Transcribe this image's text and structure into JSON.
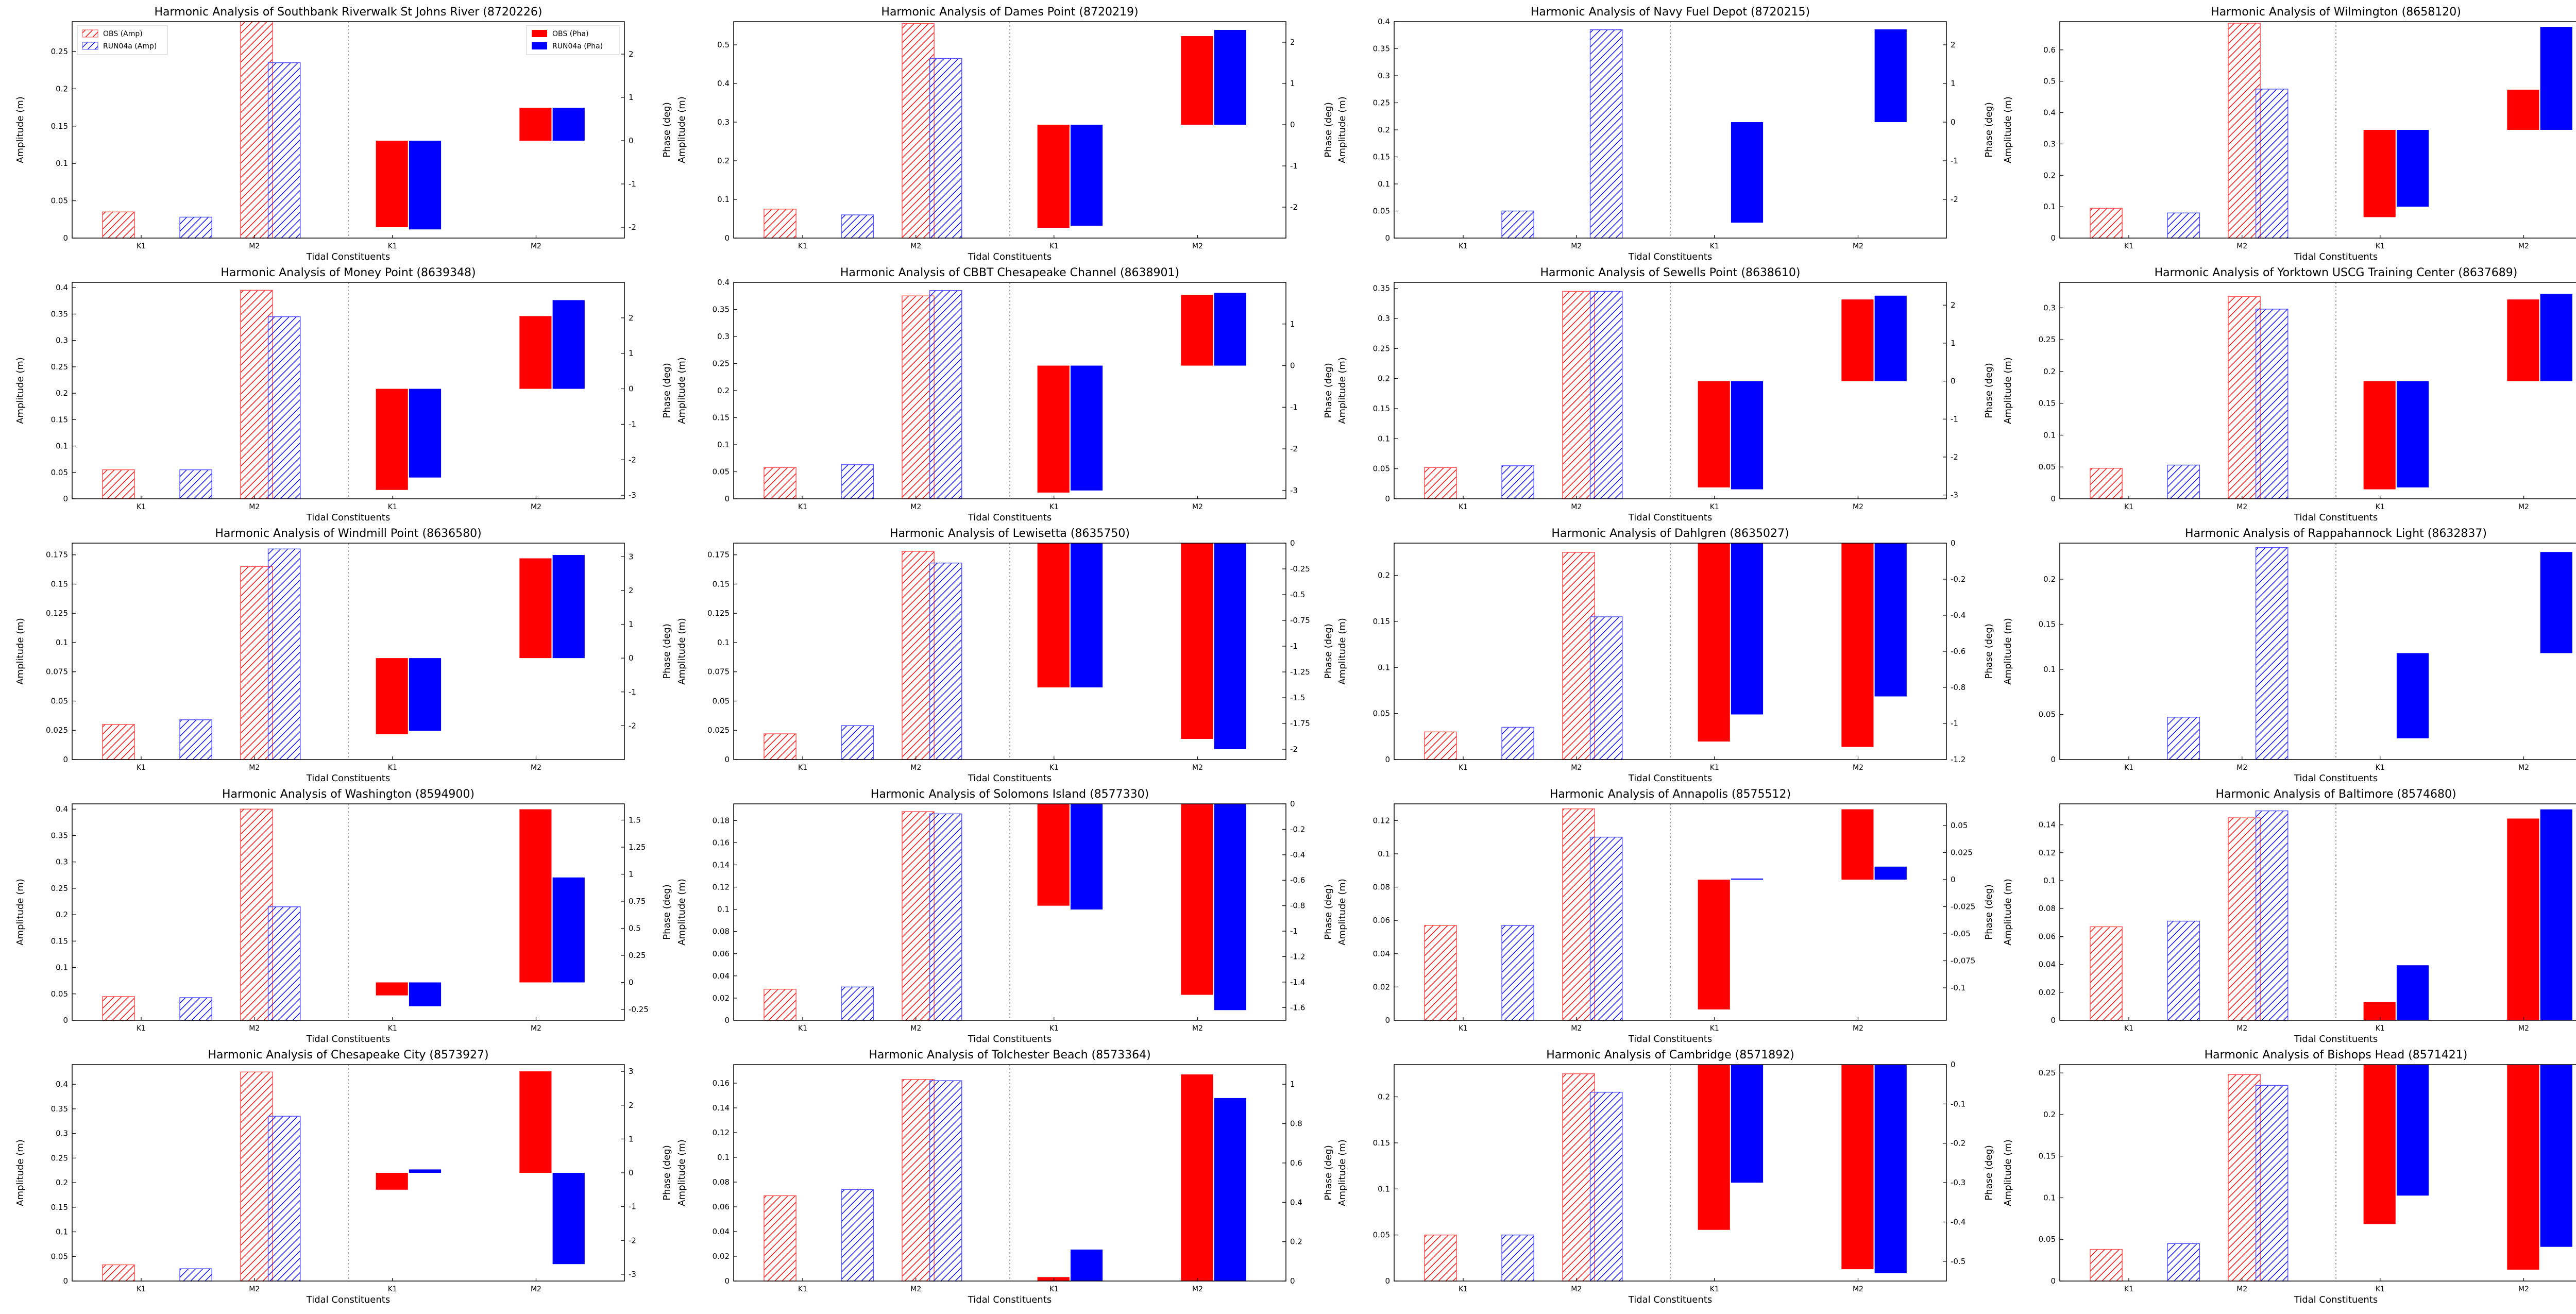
{
  "figure": {
    "xlabel": "Tidal Constituents",
    "ylabel_left": "Amplitude (m)",
    "ylabel_right": "Phase (deg)",
    "constituents": [
      "K1",
      "M2"
    ],
    "legend_amp": [
      "OBS (Amp)",
      "RUN04a (Amp)"
    ],
    "legend_pha": [
      "OBS (Pha)",
      "RUN04a (Pha)"
    ],
    "colors": {
      "obs": "#ff0000",
      "run": "#0000ff"
    }
  },
  "chart_data": [
    {
      "type": "bar",
      "title": "Harmonic Analysis of Southbank Riverwalk St Johns River (8720226)",
      "amp": {
        "ylim": [
          0,
          0.29
        ],
        "ticks": [
          0,
          0.05,
          0.1,
          0.15,
          0.2,
          0.25
        ],
        "obs": [
          0.035,
          0.29
        ],
        "run": [
          0.028,
          0.235
        ]
      },
      "pha": {
        "ylim": [
          -2.25,
          2.75
        ],
        "ticks": [
          -2,
          -1,
          0,
          1,
          2
        ],
        "obs": [
          -2.0,
          0.76
        ],
        "run": [
          -2.05,
          0.76
        ]
      },
      "legend": true
    },
    {
      "type": "bar",
      "title": "Harmonic Analysis of Dames Point (8720219)",
      "amp": {
        "ylim": [
          0,
          0.56
        ],
        "ticks": [
          0,
          0.1,
          0.2,
          0.3,
          0.4,
          0.5
        ],
        "obs": [
          0.075,
          0.555
        ],
        "run": [
          0.06,
          0.465
        ]
      },
      "pha": {
        "ylim": [
          -2.75,
          2.5
        ],
        "ticks": [
          -2,
          -1,
          0,
          1,
          2
        ],
        "obs": [
          -2.5,
          2.15
        ],
        "run": [
          -2.45,
          2.3
        ]
      }
    },
    {
      "type": "bar",
      "title": "Harmonic Analysis of Navy Fuel Depot (8720215)",
      "amp": {
        "ylim": [
          0,
          0.4
        ],
        "ticks": [
          0,
          0.05,
          0.1,
          0.15,
          0.2,
          0.25,
          0.3,
          0.35,
          0.4
        ],
        "obs": [
          0,
          0
        ],
        "run": [
          0.05,
          0.385
        ]
      },
      "pha": {
        "ylim": [
          -3.0,
          2.6
        ],
        "ticks": [
          -2,
          -1,
          0,
          1,
          2
        ],
        "obs": [
          0,
          0
        ],
        "run": [
          -2.6,
          2.4
        ]
      }
    },
    {
      "type": "bar",
      "title": "Harmonic Analysis of Wilmington (8658120)",
      "amp": {
        "ylim": [
          0,
          0.69
        ],
        "ticks": [
          0,
          0.1,
          0.2,
          0.3,
          0.4,
          0.5,
          0.6
        ],
        "obs": [
          0.095,
          0.685
        ],
        "run": [
          0.08,
          0.475
        ]
      },
      "pha": {
        "ylim": [
          -3.1,
          3.1
        ],
        "ticks": [
          -3,
          -2,
          -1,
          0,
          1,
          2,
          3
        ],
        "obs": [
          -2.5,
          1.15
        ],
        "run": [
          -2.2,
          2.95
        ]
      }
    },
    {
      "type": "bar",
      "title": "Harmonic Analysis of Money Point (8639348)",
      "amp": {
        "ylim": [
          0,
          0.41
        ],
        "ticks": [
          0,
          0.05,
          0.1,
          0.15,
          0.2,
          0.25,
          0.3,
          0.35,
          0.4
        ],
        "obs": [
          0.055,
          0.395
        ],
        "run": [
          0.055,
          0.345
        ]
      },
      "pha": {
        "ylim": [
          -3.1,
          3.0
        ],
        "ticks": [
          -3,
          -2,
          -1,
          0,
          1,
          2
        ],
        "obs": [
          -2.85,
          2.05
        ],
        "run": [
          -2.5,
          2.5
        ]
      }
    },
    {
      "type": "bar",
      "title": "Harmonic Analysis of CBBT Chesapeake Channel (8638901)",
      "amp": {
        "ylim": [
          0,
          0.4
        ],
        "ticks": [
          0,
          0.05,
          0.1,
          0.15,
          0.2,
          0.25,
          0.3,
          0.35,
          0.4
        ],
        "obs": [
          0.058,
          0.375
        ],
        "run": [
          0.063,
          0.385
        ]
      },
      "pha": {
        "ylim": [
          -3.2,
          2.0
        ],
        "ticks": [
          -3,
          -2,
          -1,
          0,
          1
        ],
        "obs": [
          -3.05,
          1.7
        ],
        "run": [
          -3.0,
          1.75
        ]
      }
    },
    {
      "type": "bar",
      "title": "Harmonic Analysis of Sewells Point (8638610)",
      "amp": {
        "ylim": [
          0,
          0.36
        ],
        "ticks": [
          0,
          0.05,
          0.1,
          0.15,
          0.2,
          0.25,
          0.3,
          0.35
        ],
        "obs": [
          0.052,
          0.345
        ],
        "run": [
          0.055,
          0.345
        ]
      },
      "pha": {
        "ylim": [
          -3.1,
          2.6
        ],
        "ticks": [
          -3,
          -2,
          -1,
          0,
          1,
          2
        ],
        "obs": [
          -2.8,
          2.15
        ],
        "run": [
          -2.85,
          2.25
        ]
      }
    },
    {
      "type": "bar",
      "title": "Harmonic Analysis of Yorktown USCG Training Center (8637689)",
      "amp": {
        "ylim": [
          0,
          0.34
        ],
        "ticks": [
          0,
          0.05,
          0.1,
          0.15,
          0.2,
          0.25,
          0.3
        ],
        "obs": [
          0.048,
          0.318
        ],
        "run": [
          0.053,
          0.298
        ]
      },
      "pha": {
        "ylim": [
          -3.1,
          2.6
        ],
        "ticks": [
          -3,
          -2,
          -1,
          0,
          1,
          2
        ],
        "obs": [
          -2.85,
          2.15
        ],
        "run": [
          -2.8,
          2.3
        ]
      }
    },
    {
      "type": "bar",
      "title": "Harmonic Analysis of Windmill Point (8636580)",
      "amp": {
        "ylim": [
          0,
          0.185
        ],
        "ticks": [
          0,
          0.025,
          0.05,
          0.075,
          0.1,
          0.125,
          0.15,
          0.175
        ],
        "obs": [
          0.03,
          0.165
        ],
        "run": [
          0.034,
          0.18
        ]
      },
      "pha": {
        "ylim": [
          -3.0,
          3.4
        ],
        "ticks": [
          -2,
          -1,
          0,
          1,
          2,
          3
        ],
        "obs": [
          -2.25,
          2.95
        ],
        "run": [
          -2.15,
          3.05
        ]
      }
    },
    {
      "type": "bar",
      "title": "Harmonic Analysis of Lewisetta (8635750)",
      "amp": {
        "ylim": [
          0,
          0.185
        ],
        "ticks": [
          0,
          0.025,
          0.05,
          0.075,
          0.1,
          0.125,
          0.15,
          0.175
        ],
        "obs": [
          0.022,
          0.178
        ],
        "run": [
          0.029,
          0.168
        ]
      },
      "pha": {
        "ylim": [
          -2.1,
          0.0
        ],
        "ticks": [
          -2.0,
          -1.75,
          -1.5,
          -1.25,
          -1.0,
          -0.75,
          -0.5,
          -0.25,
          0.0
        ],
        "obs": [
          -1.4,
          -1.9
        ],
        "run": [
          -1.4,
          -2.0
        ]
      }
    },
    {
      "type": "bar",
      "title": "Harmonic Analysis of Dahlgren (8635027)",
      "amp": {
        "ylim": [
          0,
          0.235
        ],
        "ticks": [
          0,
          0.05,
          0.1,
          0.15,
          0.2
        ],
        "obs": [
          0.03,
          0.225
        ],
        "run": [
          0.035,
          0.155
        ]
      },
      "pha": {
        "ylim": [
          -1.2,
          0.0
        ],
        "ticks": [
          -1.2,
          -1.0,
          -0.8,
          -0.6,
          -0.4,
          -0.2,
          0.0
        ],
        "obs": [
          -1.1,
          -1.13
        ],
        "run": [
          -0.95,
          -0.85
        ]
      }
    },
    {
      "type": "bar",
      "title": "Harmonic Analysis of Rappahannock Light (8632837)",
      "amp": {
        "ylim": [
          0,
          0.24
        ],
        "ticks": [
          0,
          0.05,
          0.1,
          0.15,
          0.2
        ],
        "obs": [
          0,
          0
        ],
        "run": [
          0.047,
          0.235
        ]
      },
      "pha": {
        "ylim": [
          -3.0,
          3.1
        ],
        "ticks": [
          -2,
          -1,
          0,
          1,
          2,
          3
        ],
        "obs": [
          0,
          0
        ],
        "run": [
          -2.4,
          2.85
        ]
      }
    },
    {
      "type": "bar",
      "title": "Harmonic Analysis of Washington (8594900)",
      "amp": {
        "ylim": [
          0,
          0.41
        ],
        "ticks": [
          0,
          0.05,
          0.1,
          0.15,
          0.2,
          0.25,
          0.3,
          0.35,
          0.4
        ],
        "obs": [
          0.045,
          0.4
        ],
        "run": [
          0.043,
          0.215
        ]
      },
      "pha": {
        "ylim": [
          -0.35,
          1.65
        ],
        "ticks": [
          -0.25,
          0,
          0.25,
          0.5,
          0.75,
          1.0,
          1.25,
          1.5
        ],
        "obs": [
          -0.12,
          1.6
        ],
        "run": [
          -0.22,
          0.97
        ]
      }
    },
    {
      "type": "bar",
      "title": "Harmonic Analysis of Solomons Island (8577330)",
      "amp": {
        "ylim": [
          0,
          0.195
        ],
        "ticks": [
          0,
          0.02,
          0.04,
          0.06,
          0.08,
          0.1,
          0.12,
          0.14,
          0.16,
          0.18
        ],
        "obs": [
          0.028,
          0.188
        ],
        "run": [
          0.03,
          0.186
        ]
      },
      "pha": {
        "ylim": [
          -1.7,
          0.0
        ],
        "ticks": [
          -1.6,
          -1.4,
          -1.2,
          -1.0,
          -0.8,
          -0.6,
          -0.4,
          -0.2,
          0.0
        ],
        "obs": [
          -0.8,
          -1.5
        ],
        "run": [
          -0.83,
          -1.62
        ]
      }
    },
    {
      "type": "bar",
      "title": "Harmonic Analysis of Annapolis (8575512)",
      "amp": {
        "ylim": [
          0,
          0.13
        ],
        "ticks": [
          0,
          0.02,
          0.04,
          0.06,
          0.08,
          0.1,
          0.12
        ],
        "obs": [
          0.057,
          0.127
        ],
        "run": [
          0.057,
          0.11
        ]
      },
      "pha": {
        "ylim": [
          -0.13,
          0.07
        ],
        "ticks": [
          -0.1,
          -0.075,
          -0.05,
          -0.025,
          0.0,
          0.025,
          0.05
        ],
        "obs": [
          -0.12,
          0.065
        ],
        "run": [
          0.001,
          0.012
        ]
      }
    },
    {
      "type": "bar",
      "title": "Harmonic Analysis of Baltimore (8574680)",
      "amp": {
        "ylim": [
          0,
          0.155
        ],
        "ticks": [
          0,
          0.02,
          0.04,
          0.06,
          0.08,
          0.1,
          0.12,
          0.14
        ],
        "obs": [
          0.067,
          0.145
        ],
        "run": [
          0.071,
          0.15
        ]
      },
      "pha": {
        "ylim": [
          0,
          1.18
        ],
        "ticks": [
          0,
          0.2,
          0.4,
          0.6,
          0.8,
          1.0
        ],
        "obs": [
          0.1,
          1.1
        ],
        "run": [
          0.3,
          1.15
        ]
      }
    },
    {
      "type": "bar",
      "title": "Harmonic Analysis of Chesapeake City (8573927)",
      "amp": {
        "ylim": [
          0,
          0.44
        ],
        "ticks": [
          0,
          0.05,
          0.1,
          0.15,
          0.2,
          0.25,
          0.3,
          0.35,
          0.4
        ],
        "obs": [
          0.033,
          0.425
        ],
        "run": [
          0.025,
          0.335
        ]
      },
      "pha": {
        "ylim": [
          -3.2,
          3.2
        ],
        "ticks": [
          -3,
          -2,
          -1,
          0,
          1,
          2,
          3
        ],
        "obs": [
          -0.5,
          3.0
        ],
        "run": [
          0.1,
          -2.7
        ]
      }
    },
    {
      "type": "bar",
      "title": "Harmonic Analysis of Tolchester Beach (8573364)",
      "amp": {
        "ylim": [
          0,
          0.175
        ],
        "ticks": [
          0,
          0.02,
          0.04,
          0.06,
          0.08,
          0.1,
          0.12,
          0.14,
          0.16
        ],
        "obs": [
          0.069,
          0.163
        ],
        "run": [
          0.074,
          0.162
        ]
      },
      "pha": {
        "ylim": [
          0,
          1.1
        ],
        "ticks": [
          0,
          0.2,
          0.4,
          0.6,
          0.8,
          1.0
        ],
        "obs": [
          0.02,
          1.05
        ],
        "run": [
          0.16,
          0.93
        ]
      }
    },
    {
      "type": "bar",
      "title": "Harmonic Analysis of Cambridge (8571892)",
      "amp": {
        "ylim": [
          0,
          0.235
        ],
        "ticks": [
          0,
          0.05,
          0.1,
          0.15,
          0.2
        ],
        "obs": [
          0.05,
          0.225
        ],
        "run": [
          0.05,
          0.205
        ]
      },
      "pha": {
        "ylim": [
          -0.55,
          0.0
        ],
        "ticks": [
          -0.5,
          -0.4,
          -0.3,
          -0.2,
          -0.1,
          0.0
        ],
        "obs": [
          -0.42,
          -0.52
        ],
        "run": [
          -0.3,
          -0.53
        ]
      }
    },
    {
      "type": "bar",
      "title": "Harmonic Analysis of Bishops Head (8571421)",
      "amp": {
        "ylim": [
          0,
          0.26
        ],
        "ticks": [
          0,
          0.05,
          0.1,
          0.15,
          0.2,
          0.25
        ],
        "obs": [
          0.038,
          0.248
        ],
        "run": [
          0.045,
          0.235
        ]
      },
      "pha": {
        "ylim": [
          -1.9,
          0.0
        ],
        "ticks": [
          -1.75,
          -1.5,
          -1.25,
          -1.0,
          -0.75,
          -0.5,
          -0.25,
          0.0
        ],
        "obs": [
          -1.4,
          -1.8
        ],
        "run": [
          -1.15,
          -1.6
        ]
      }
    }
  ]
}
